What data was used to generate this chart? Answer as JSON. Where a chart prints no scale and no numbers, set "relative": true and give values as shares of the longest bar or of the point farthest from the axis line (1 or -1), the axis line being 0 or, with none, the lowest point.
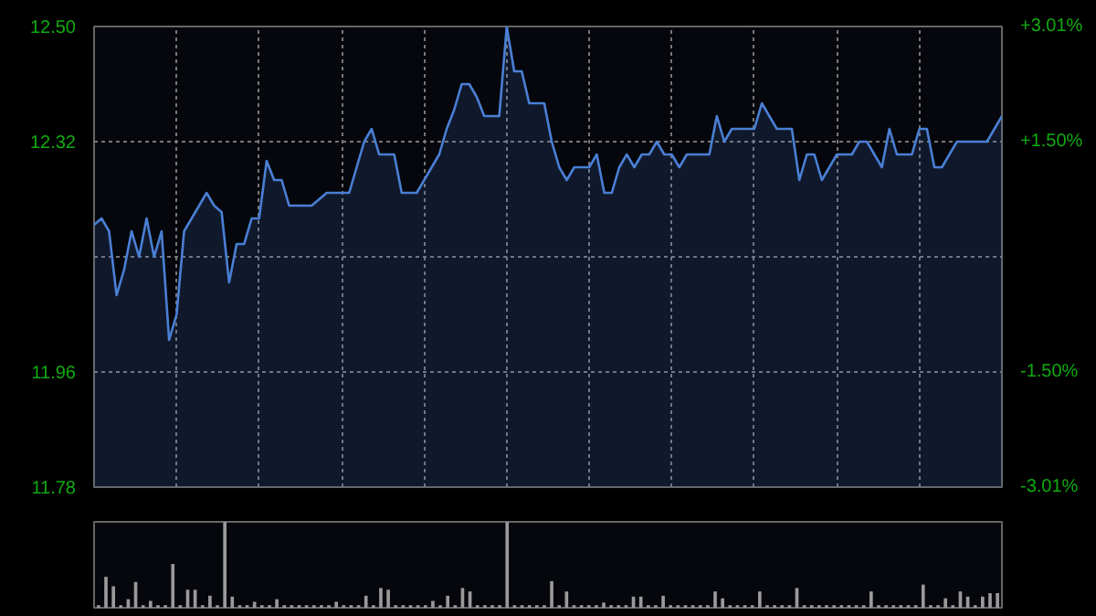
{
  "chart_data": [
    {
      "type": "area",
      "categories": [
        null,
        null,
        null,
        null,
        null,
        null,
        null,
        null,
        null,
        null,
        null,
        null,
        null,
        null,
        null,
        null,
        null,
        null,
        null,
        null,
        null,
        null,
        null,
        null,
        null,
        null,
        null,
        null,
        null,
        null,
        null,
        null,
        null,
        null,
        null,
        null,
        null,
        null,
        null,
        null,
        null,
        null,
        null,
        null,
        null,
        null,
        null,
        null,
        null,
        null,
        null,
        null,
        null,
        null,
        null,
        null,
        null,
        null,
        null,
        null,
        null,
        null,
        null,
        null,
        null,
        null,
        null,
        null,
        null,
        null,
        null,
        null,
        null,
        null,
        null,
        null,
        null,
        null,
        null,
        null,
        null,
        null,
        null,
        null,
        null,
        null,
        null,
        null,
        null,
        null,
        null,
        null,
        null,
        null,
        null,
        null,
        null,
        null,
        null,
        null,
        null,
        null,
        null,
        null,
        null,
        null,
        null,
        null,
        null,
        null,
        null,
        null,
        null,
        null,
        null,
        null,
        null,
        null,
        null,
        null,
        null,
        null
      ],
      "ylim": [
        11.78,
        12.5
      ],
      "yticks": [
        11.78,
        11.96,
        {
          "value": 12.14,
          "label": null
        },
        12.32,
        {
          "value": 12.5,
          "label": "12.50"
        }
      ],
      "y2lim": [
        -3.01,
        3.01
      ],
      "y2ticks": [
        {
          "value": -3.01,
          "label": "-3.01%"
        },
        {
          "value": -1.5,
          "label": "-1.50%"
        },
        {
          "value": 1.5,
          "label": "+1.50%"
        },
        {
          "value": 3.01,
          "label": "+3.01%"
        }
      ],
      "grid": true,
      "series": [
        {
          "color": "#4a7fd4",
          "values": [
            12.19,
            12.2,
            12.18,
            12.08,
            12.12,
            12.18,
            12.14,
            12.2,
            12.14,
            12.18,
            12.01,
            12.05,
            12.18,
            12.2,
            12.22,
            12.24,
            12.22,
            12.21,
            12.1,
            12.16,
            12.16,
            12.2,
            12.2,
            12.29,
            12.26,
            12.26,
            12.22,
            12.22,
            12.22,
            12.22,
            12.23,
            12.24,
            12.24,
            12.24,
            12.24,
            12.28,
            12.32,
            12.34,
            12.3,
            12.3,
            12.3,
            12.24,
            12.24,
            12.24,
            12.26,
            12.28,
            12.3,
            12.34,
            12.37,
            12.41,
            12.41,
            12.39,
            12.36,
            12.36,
            12.36,
            12.5,
            12.43,
            12.43,
            12.38,
            12.38,
            12.38,
            12.32,
            12.28,
            12.26,
            12.28,
            12.28,
            12.28,
            12.3,
            12.24,
            12.24,
            12.28,
            12.3,
            12.28,
            12.3,
            12.3,
            12.32,
            12.3,
            12.3,
            12.28,
            12.3,
            12.3,
            12.3,
            12.3,
            12.36,
            12.32,
            12.34,
            12.34,
            12.34,
            12.34,
            12.38,
            12.36,
            12.34,
            12.34,
            12.34,
            12.26,
            12.3,
            12.3,
            12.26,
            12.28,
            12.3,
            12.3,
            12.3,
            12.32,
            12.32,
            12.3,
            12.28,
            12.34,
            12.3,
            12.3,
            12.3,
            12.34,
            12.34,
            12.28,
            12.28,
            12.3,
            12.32,
            12.32,
            12.32,
            12.32,
            12.32,
            12.34,
            12.36
          ]
        }
      ]
    },
    {
      "type": "bar",
      "relative": true,
      "color": "#9a9a9a",
      "categories": [
        null,
        null,
        null,
        null,
        null,
        null,
        null,
        null,
        null,
        null,
        null,
        null,
        null,
        null,
        null,
        null,
        null,
        null,
        null,
        null,
        null,
        null,
        null,
        null,
        null,
        null,
        null,
        null,
        null,
        null,
        null,
        null,
        null,
        null,
        null,
        null,
        null,
        null,
        null,
        null,
        null,
        null,
        null,
        null,
        null,
        null,
        null,
        null,
        null,
        null,
        null,
        null,
        null,
        null,
        null,
        null,
        null,
        null,
        null,
        null,
        null,
        null,
        null,
        null,
        null,
        null,
        null,
        null,
        null,
        null,
        null,
        null,
        null,
        null,
        null,
        null,
        null,
        null,
        null,
        null,
        null,
        null,
        null,
        null,
        null,
        null,
        null,
        null,
        null,
        null,
        null,
        null,
        null,
        null,
        null,
        null,
        null,
        null,
        null,
        null,
        null,
        null,
        null,
        null,
        null,
        null,
        null,
        null,
        null,
        null,
        null,
        null,
        null,
        null,
        null,
        null,
        null,
        null,
        null,
        null,
        null,
        null
      ],
      "values": [
        0.03,
        0.36,
        0.25,
        0.03,
        0.1,
        0.3,
        0.03,
        0.08,
        0.03,
        0.03,
        0.51,
        0.03,
        0.21,
        0.21,
        0.03,
        0.14,
        0.03,
        1,
        0.13,
        0.03,
        0.03,
        0.07,
        0.03,
        0.03,
        0.1,
        0.03,
        0.03,
        0.03,
        0.03,
        0.03,
        0.03,
        0.03,
        0.07,
        0.03,
        0.03,
        0.03,
        0.14,
        0.03,
        0.23,
        0.21,
        0.03,
        0.03,
        0.03,
        0.03,
        0.03,
        0.08,
        0.03,
        0.14,
        0.03,
        0.23,
        0.19,
        0.03,
        0.03,
        0.03,
        0.03,
        1,
        0.03,
        0.03,
        0.03,
        0.03,
        0.03,
        0.31,
        0.03,
        0.19,
        0.03,
        0.03,
        0.03,
        0.03,
        0.06,
        0.03,
        0.03,
        0.03,
        0.13,
        0.13,
        0.03,
        0.03,
        0.14,
        0.03,
        0.03,
        0.03,
        0.03,
        0.03,
        0.03,
        0.19,
        0.11,
        0.03,
        0.03,
        0.03,
        0.03,
        0.19,
        0.03,
        0.03,
        0.03,
        0.03,
        0.23,
        0.03,
        0.03,
        0.03,
        0.03,
        0.03,
        0.03,
        0.03,
        0.03,
        0.03,
        0.19,
        0.03,
        0.03,
        0.03,
        0.03,
        0.03,
        0.03,
        0.27,
        0.03,
        0.03,
        0.11,
        0.03,
        0.19,
        0.13,
        0.03,
        0.13,
        0.17,
        0.17
      ]
    }
  ]
}
